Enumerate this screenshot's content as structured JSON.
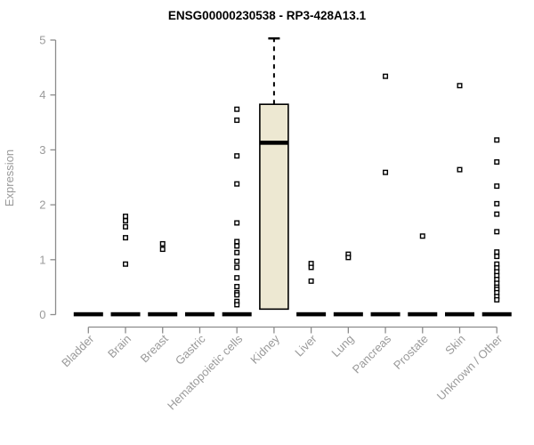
{
  "chart_data": {
    "type": "boxplot",
    "title": "ENSG00000230538 - RP3-428A13.1",
    "xlabel": "",
    "ylabel": "Expression",
    "ylim": [
      0,
      5
    ],
    "yticks": [
      0,
      1,
      2,
      3,
      4,
      5
    ],
    "grid": false,
    "legend": false,
    "categories": [
      "Bladder",
      "Brain",
      "Breast",
      "Gastric",
      "Hematopoietic cells",
      "Kidney",
      "Liver",
      "Lung",
      "Pancreas",
      "Prostate",
      "Skin",
      "Unknown / Other"
    ],
    "boxes": [
      {
        "category": "Bladder",
        "collapsed": true,
        "median": 0,
        "outliers": []
      },
      {
        "category": "Brain",
        "collapsed": true,
        "median": 0,
        "outliers": [
          1.79,
          1.71,
          1.6,
          1.4,
          0.92
        ]
      },
      {
        "category": "Breast",
        "collapsed": true,
        "median": 0,
        "outliers": [
          1.29,
          1.19
        ]
      },
      {
        "category": "Gastric",
        "collapsed": true,
        "median": 0,
        "outliers": []
      },
      {
        "category": "Hematopoietic cells",
        "collapsed": true,
        "median": 0,
        "outliers": [
          3.74,
          3.54,
          2.89,
          2.38,
          1.67,
          1.33,
          1.25,
          1.13,
          0.97,
          0.86,
          0.67,
          0.51,
          0.4,
          0.36,
          0.24,
          0.18
        ]
      },
      {
        "category": "Kidney",
        "collapsed": false,
        "q1": 0.1,
        "median": 3.13,
        "q3": 3.83,
        "whisker_low": 0.1,
        "whisker_high": 5.03,
        "outliers": []
      },
      {
        "category": "Liver",
        "collapsed": true,
        "median": 0,
        "outliers": [
          0.93,
          0.86,
          0.61
        ]
      },
      {
        "category": "Lung",
        "collapsed": true,
        "median": 0,
        "outliers": [
          1.1,
          1.04
        ]
      },
      {
        "category": "Pancreas",
        "collapsed": true,
        "median": 0,
        "outliers": [
          4.34,
          2.59
        ]
      },
      {
        "category": "Prostate",
        "collapsed": true,
        "median": 0,
        "outliers": [
          1.43
        ]
      },
      {
        "category": "Skin",
        "collapsed": true,
        "median": 0,
        "outliers": [
          4.17,
          2.64
        ]
      },
      {
        "category": "Unknown / Other",
        "collapsed": true,
        "median": 0,
        "outliers": [
          3.18,
          2.78,
          2.34,
          2.02,
          1.83,
          1.51,
          1.14,
          1.06,
          0.92,
          0.85,
          0.78,
          0.71,
          0.64,
          0.57,
          0.5,
          0.46,
          0.4,
          0.33,
          0.27
        ]
      }
    ],
    "colors": {
      "box_fill": "#EDE8D2",
      "box_stroke": "#000000",
      "median": "#000000",
      "baseline_bar": "#000000",
      "outlier_stroke": "#000000",
      "outlier_fill": "#ffffff",
      "axis_line": "#8c8c8c",
      "axis_text": "#9a9a9a",
      "title_text": "#000000",
      "background": "#ffffff"
    }
  }
}
